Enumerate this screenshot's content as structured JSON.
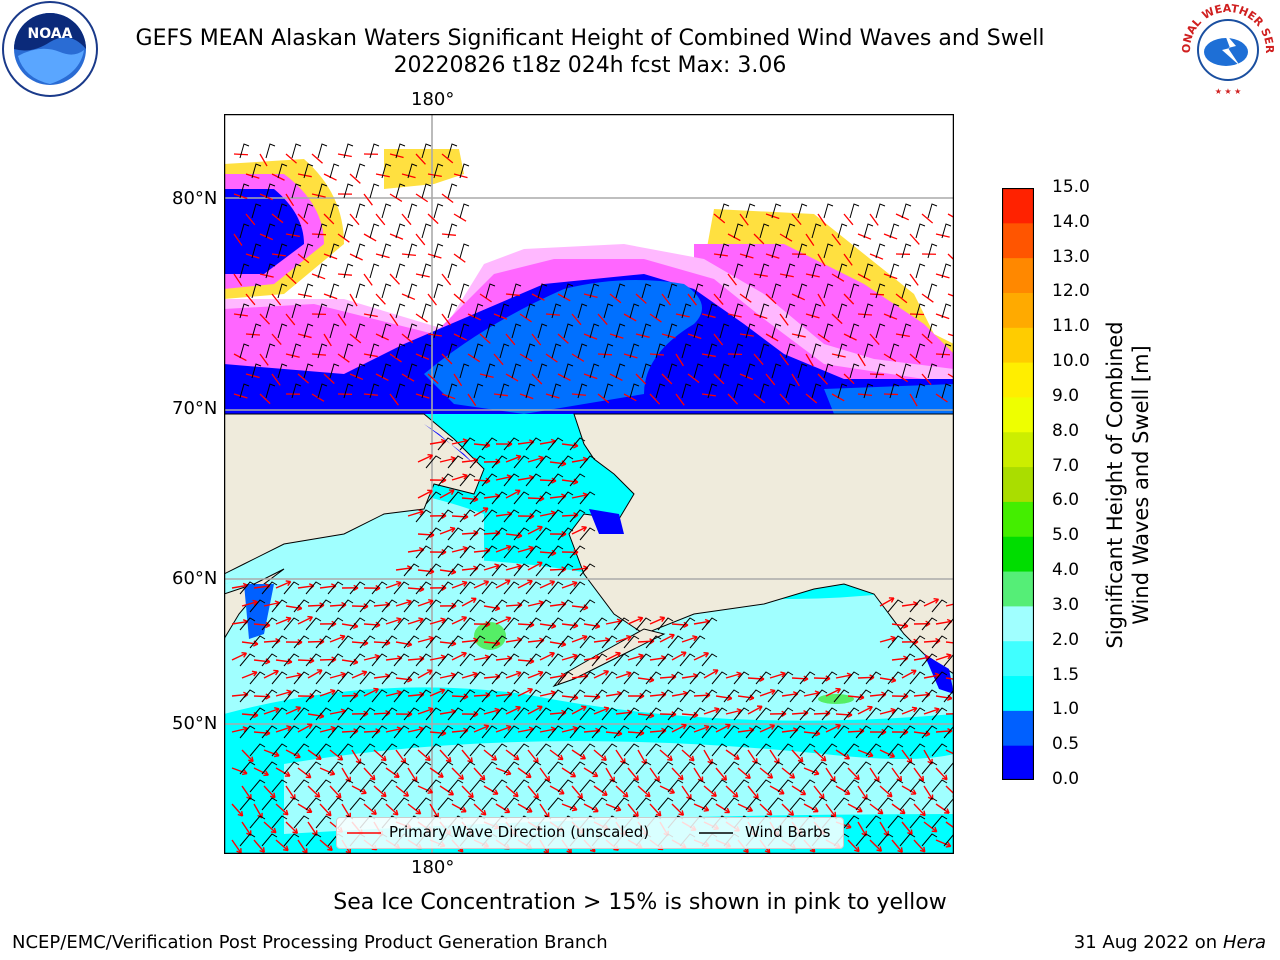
{
  "header": {
    "title_line1": "GEFS MEAN Alaskan Waters Significant Height of Combined Wind Waves and Swell",
    "title_line2": "20220826 t18z 024h fcst   Max: 3.06"
  },
  "logos": {
    "left": {
      "icon": "noaa-logo",
      "text": "NOAA"
    },
    "right": {
      "icon": "nws-logo",
      "text": "NATIONAL WEATHER SERVICE"
    }
  },
  "map": {
    "lon_label_top": "180°",
    "lon_label_bottom": "180°",
    "lat_labels": [
      "80°N",
      "70°N",
      "60°N",
      "50°N"
    ],
    "ocean_colors": {
      "deep_blue": "#0000ff",
      "mid_blue": "#0070ff",
      "light_cyan": "#a0ffff",
      "cyan": "#00ffff",
      "green": "#55ee66",
      "land": "#efebdc",
      "ice_pink": "#ff66ff",
      "ice_yellow": "#ffe040",
      "wave_arrows": "#ff0000",
      "wind_barbs": "#000000"
    }
  },
  "colorbar": {
    "ticks": [
      "15.0",
      "14.0",
      "13.0",
      "12.0",
      "11.0",
      "10.0",
      "9.0",
      "8.0",
      "7.0",
      "6.0",
      "5.0",
      "4.0",
      "3.0",
      "2.0",
      "1.5",
      "1.0",
      "0.5",
      "0.0"
    ],
    "colors": [
      "#0000ff",
      "#0060ff",
      "#00ffff",
      "#40ffff",
      "#a0ffff",
      "#55ee77",
      "#00dd00",
      "#44ee00",
      "#aadd00",
      "#ccee00",
      "#eeff00",
      "#ffee00",
      "#ffcc00",
      "#ffaa00",
      "#ff8800",
      "#ff5500",
      "#ff2200"
    ],
    "label_line1": "Significant Height of Combined",
    "label_line2": "Wind Waves and Swell [m]"
  },
  "legend": {
    "wave_label": "Primary Wave Direction (unscaled)",
    "wind_label": "Wind Barbs",
    "wave_color": "#ff0000",
    "wind_color": "#000000"
  },
  "footer": {
    "ice_note": "Sea Ice Concentration > 15% is shown in pink to yellow",
    "credit": "NCEP/EMC/Verification Post Processing Product Generation Branch",
    "date": "31 Aug 2022 on",
    "machine": "Hera"
  }
}
